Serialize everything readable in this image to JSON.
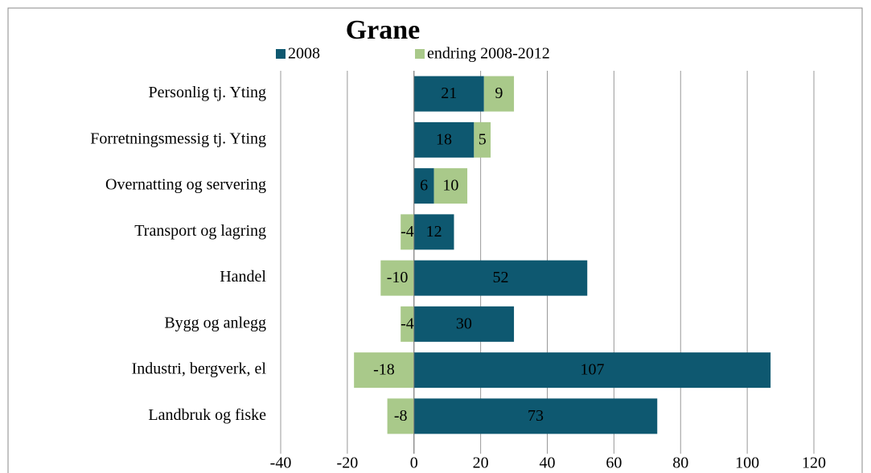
{
  "chart_data": {
    "type": "bar",
    "orientation": "horizontal",
    "stacked": true,
    "title": "Grane",
    "categories": [
      "Personlig tj. Yting",
      "Forretningsmessig tj. Yting",
      "Overnatting og servering",
      "Transport og lagring",
      "Handel",
      "Bygg og anlegg",
      "Industri, bergverk, el",
      "Landbruk og fiske"
    ],
    "series": [
      {
        "name": "2008",
        "color": "#0e5870",
        "values": [
          21,
          18,
          6,
          12,
          52,
          30,
          107,
          73
        ]
      },
      {
        "name": "endring 2008-2012",
        "color": "#a9c98a",
        "values": [
          9,
          5,
          10,
          -4,
          -10,
          -4,
          -18,
          -8
        ]
      }
    ],
    "xlim": [
      -40,
      120
    ],
    "xticks": [
      -40,
      -20,
      0,
      20,
      40,
      60,
      80,
      100,
      120
    ],
    "grid": true,
    "legend": "top"
  }
}
